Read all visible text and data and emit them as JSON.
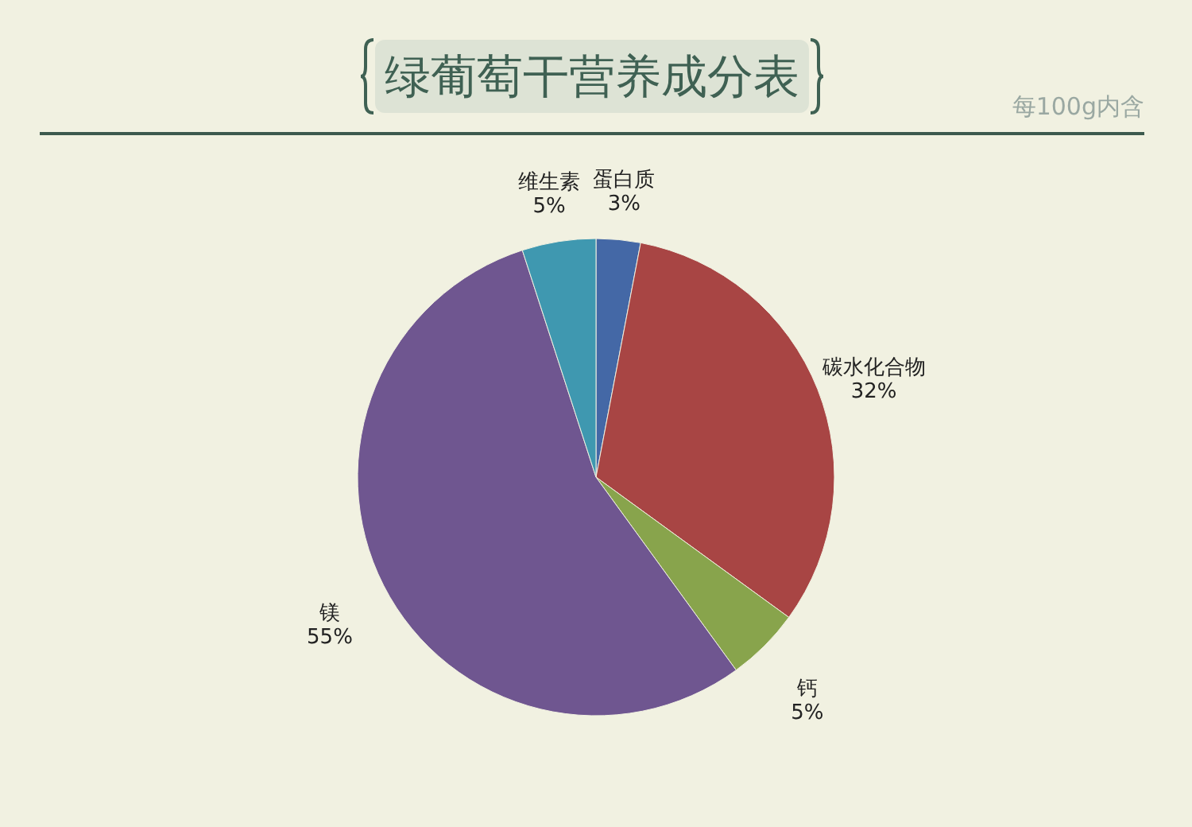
{
  "chart_data": {
    "type": "pie",
    "title": "绿葡萄干营养成分表",
    "subtitle": "每100g内含",
    "categories": [
      "蛋白质",
      "碳水化合物",
      "钙",
      "镁",
      "维生素"
    ],
    "values": [
      3,
      32,
      5,
      55,
      5
    ],
    "value_labels": [
      "3%",
      "32%",
      "5%",
      "55%",
      "5%"
    ],
    "colors": [
      "#4468a6",
      "#a84544",
      "#88a44c",
      "#6f5690",
      "#3f98b0"
    ]
  }
}
